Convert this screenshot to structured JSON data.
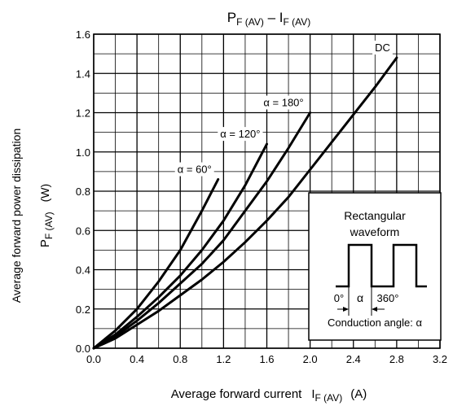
{
  "chart_data": {
    "type": "line",
    "title": {
      "main": "P",
      "sub1": "F (AV)",
      "mid": " – I",
      "sub2": "F (AV)"
    },
    "xlabel": {
      "text": "Average forward current",
      "sym": "I",
      "sub": "F (AV)",
      "unit": "(A)"
    },
    "ylabel": {
      "line1": "Average forward power dissipation",
      "sym": "P",
      "sub": "F (AV)",
      "unit": "(W)"
    },
    "xlim": [
      0,
      3.2
    ],
    "ylim": [
      0,
      1.6
    ],
    "x_major_ticks": [
      0,
      0.4,
      0.8,
      1.2,
      1.6,
      2.0,
      2.4,
      2.8,
      3.2
    ],
    "x_tick_labels": [
      "0.0",
      "0.4",
      "0.8",
      "1.2",
      "1.6",
      "2.0",
      "2.4",
      "2.8",
      "3.2"
    ],
    "y_major_ticks": [
      0,
      0.2,
      0.4,
      0.6,
      0.8,
      1.0,
      1.2,
      1.4,
      1.6
    ],
    "y_tick_labels": [
      "0.0",
      "0.2",
      "0.4",
      "0.6",
      "0.8",
      "1.0",
      "1.2",
      "1.4",
      "1.6"
    ],
    "grid": true,
    "series": [
      {
        "name": "α = 60°",
        "x": [
          0,
          0.2,
          0.4,
          0.6,
          0.8,
          1.0,
          1.15
        ],
        "y": [
          0,
          0.09,
          0.2,
          0.34,
          0.5,
          0.7,
          0.86
        ]
      },
      {
        "name": "α = 120°",
        "x": [
          0,
          0.2,
          0.4,
          0.6,
          0.8,
          1.0,
          1.2,
          1.4,
          1.6
        ],
        "y": [
          0,
          0.07,
          0.16,
          0.26,
          0.37,
          0.5,
          0.65,
          0.83,
          1.04
        ]
      },
      {
        "name": "α = 180°",
        "x": [
          0,
          0.2,
          0.4,
          0.6,
          0.8,
          1.0,
          1.2,
          1.4,
          1.6,
          1.8,
          2.0
        ],
        "y": [
          0,
          0.06,
          0.14,
          0.23,
          0.33,
          0.43,
          0.55,
          0.7,
          0.85,
          1.02,
          1.2
        ]
      },
      {
        "name": "DC",
        "x": [
          0,
          0.2,
          0.4,
          0.6,
          0.8,
          1.0,
          1.2,
          1.4,
          1.6,
          1.8,
          2.0,
          2.2,
          2.4,
          2.6,
          2.8
        ],
        "y": [
          0,
          0.05,
          0.12,
          0.19,
          0.27,
          0.35,
          0.44,
          0.54,
          0.65,
          0.77,
          0.91,
          1.05,
          1.19,
          1.33,
          1.48
        ]
      }
    ],
    "inset": {
      "title_line1": "Rectangular",
      "title_line2": "waveform",
      "label_zero": "0°",
      "label_alpha": "α",
      "label_360": "360°",
      "caption": "Conduction angle: α"
    }
  }
}
